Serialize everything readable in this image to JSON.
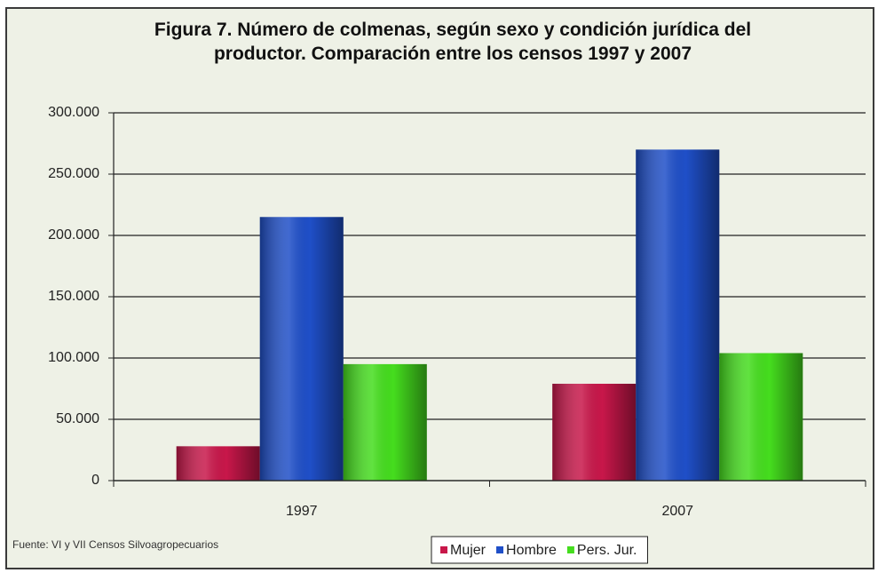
{
  "chart_data": {
    "type": "bar",
    "title": "Figura 7. Número de colmenas, según sexo y condición jurídica  del productor. Comparación entre los censos 1997 y 2007",
    "categories": [
      "1997",
      "2007"
    ],
    "series": [
      {
        "name": "Mujer",
        "color": "#c8174a",
        "values": [
          28000,
          79000
        ]
      },
      {
        "name": "Hombre",
        "color": "#1f4fc8",
        "values": [
          215000,
          270000
        ]
      },
      {
        "name": "Pers. Jur.",
        "color": "#45dd1e",
        "values": [
          95000,
          104000
        ]
      }
    ],
    "ylim": [
      0,
      300000
    ],
    "yticks": [
      0,
      {
        "value": 50000,
        "label": "50.000"
      },
      {
        "value": 100000,
        "label": "100.000"
      },
      {
        "value": 150000,
        "label": "150.000"
      },
      {
        "value": 200000,
        "label": "200.000"
      },
      {
        "value": 250000,
        "label": "250.000"
      },
      {
        "value": 300000,
        "label": "300.000"
      }
    ],
    "grid": true,
    "legend": "bottom",
    "source": "Fuente: VI y VII Censos Silvoagropecuarios"
  }
}
